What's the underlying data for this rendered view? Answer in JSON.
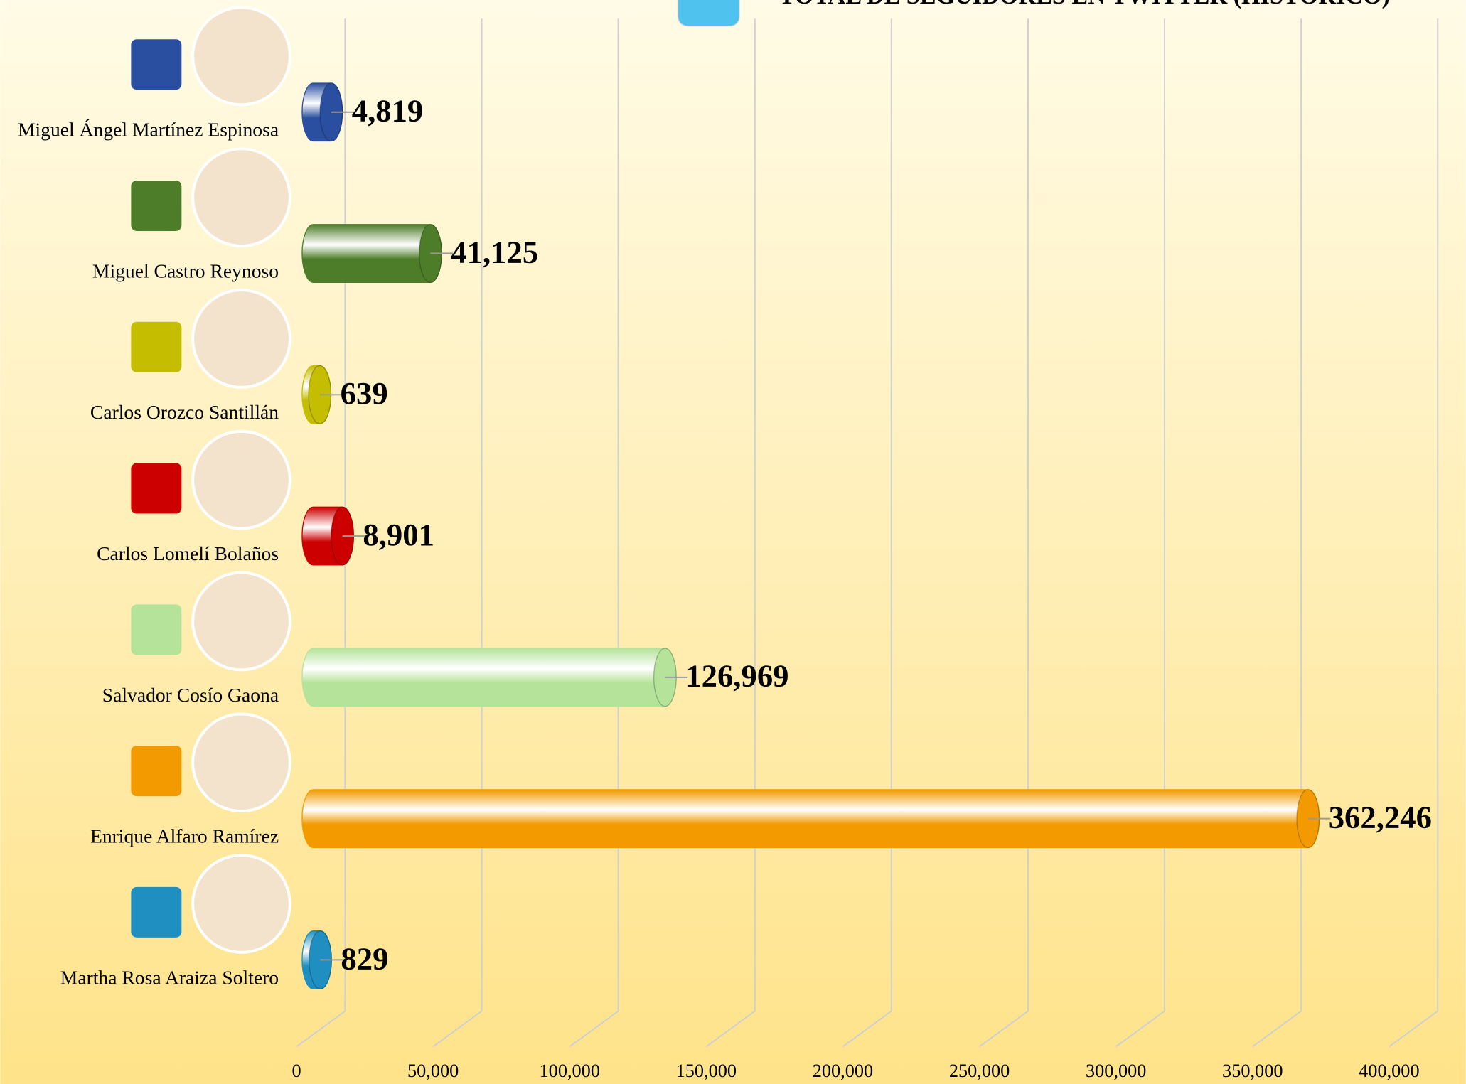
{
  "chart_data": {
    "type": "bar",
    "orientation": "horizontal",
    "title": "TOTAL DE SEGUIDORES EN TWITTER (HISTÓRICO)",
    "categories": [
      "Miguel Ángel Martínez Espinosa",
      "Miguel Castro Reynoso",
      "Carlos Orozco Santillán",
      "Carlos Lomelí Bolaños",
      "Salvador Cosío Gaona",
      "Enrique Alfaro Ramírez",
      "Martha Rosa Araiza Soltero"
    ],
    "values": [
      4819,
      41125,
      639,
      8901,
      126969,
      362246,
      829
    ],
    "value_labels": [
      "4,819",
      "41,125",
      "639",
      "8,901",
      "126,969",
      "362,246",
      "829"
    ],
    "colors": [
      "#2a4fa0",
      "#4e7d2a",
      "#c4bd00",
      "#cc0000",
      "#b5e39a",
      "#f29a00",
      "#1e8fc0"
    ],
    "xlim": [
      0,
      400000
    ],
    "xticks": [
      0,
      {
        "value": 50000,
        "label": "50,000"
      },
      {
        "value": 100000,
        "label": "100,000"
      },
      {
        "value": 150000,
        "label": "150,000"
      },
      {
        "value": 200000,
        "label": "200,000"
      },
      {
        "value": 250000,
        "label": "250,000"
      },
      {
        "value": 300000,
        "label": "300,000"
      },
      {
        "value": 350000,
        "label": "350,000"
      },
      {
        "value": 400000,
        "label": "400,000"
      }
    ],
    "grid": true
  }
}
